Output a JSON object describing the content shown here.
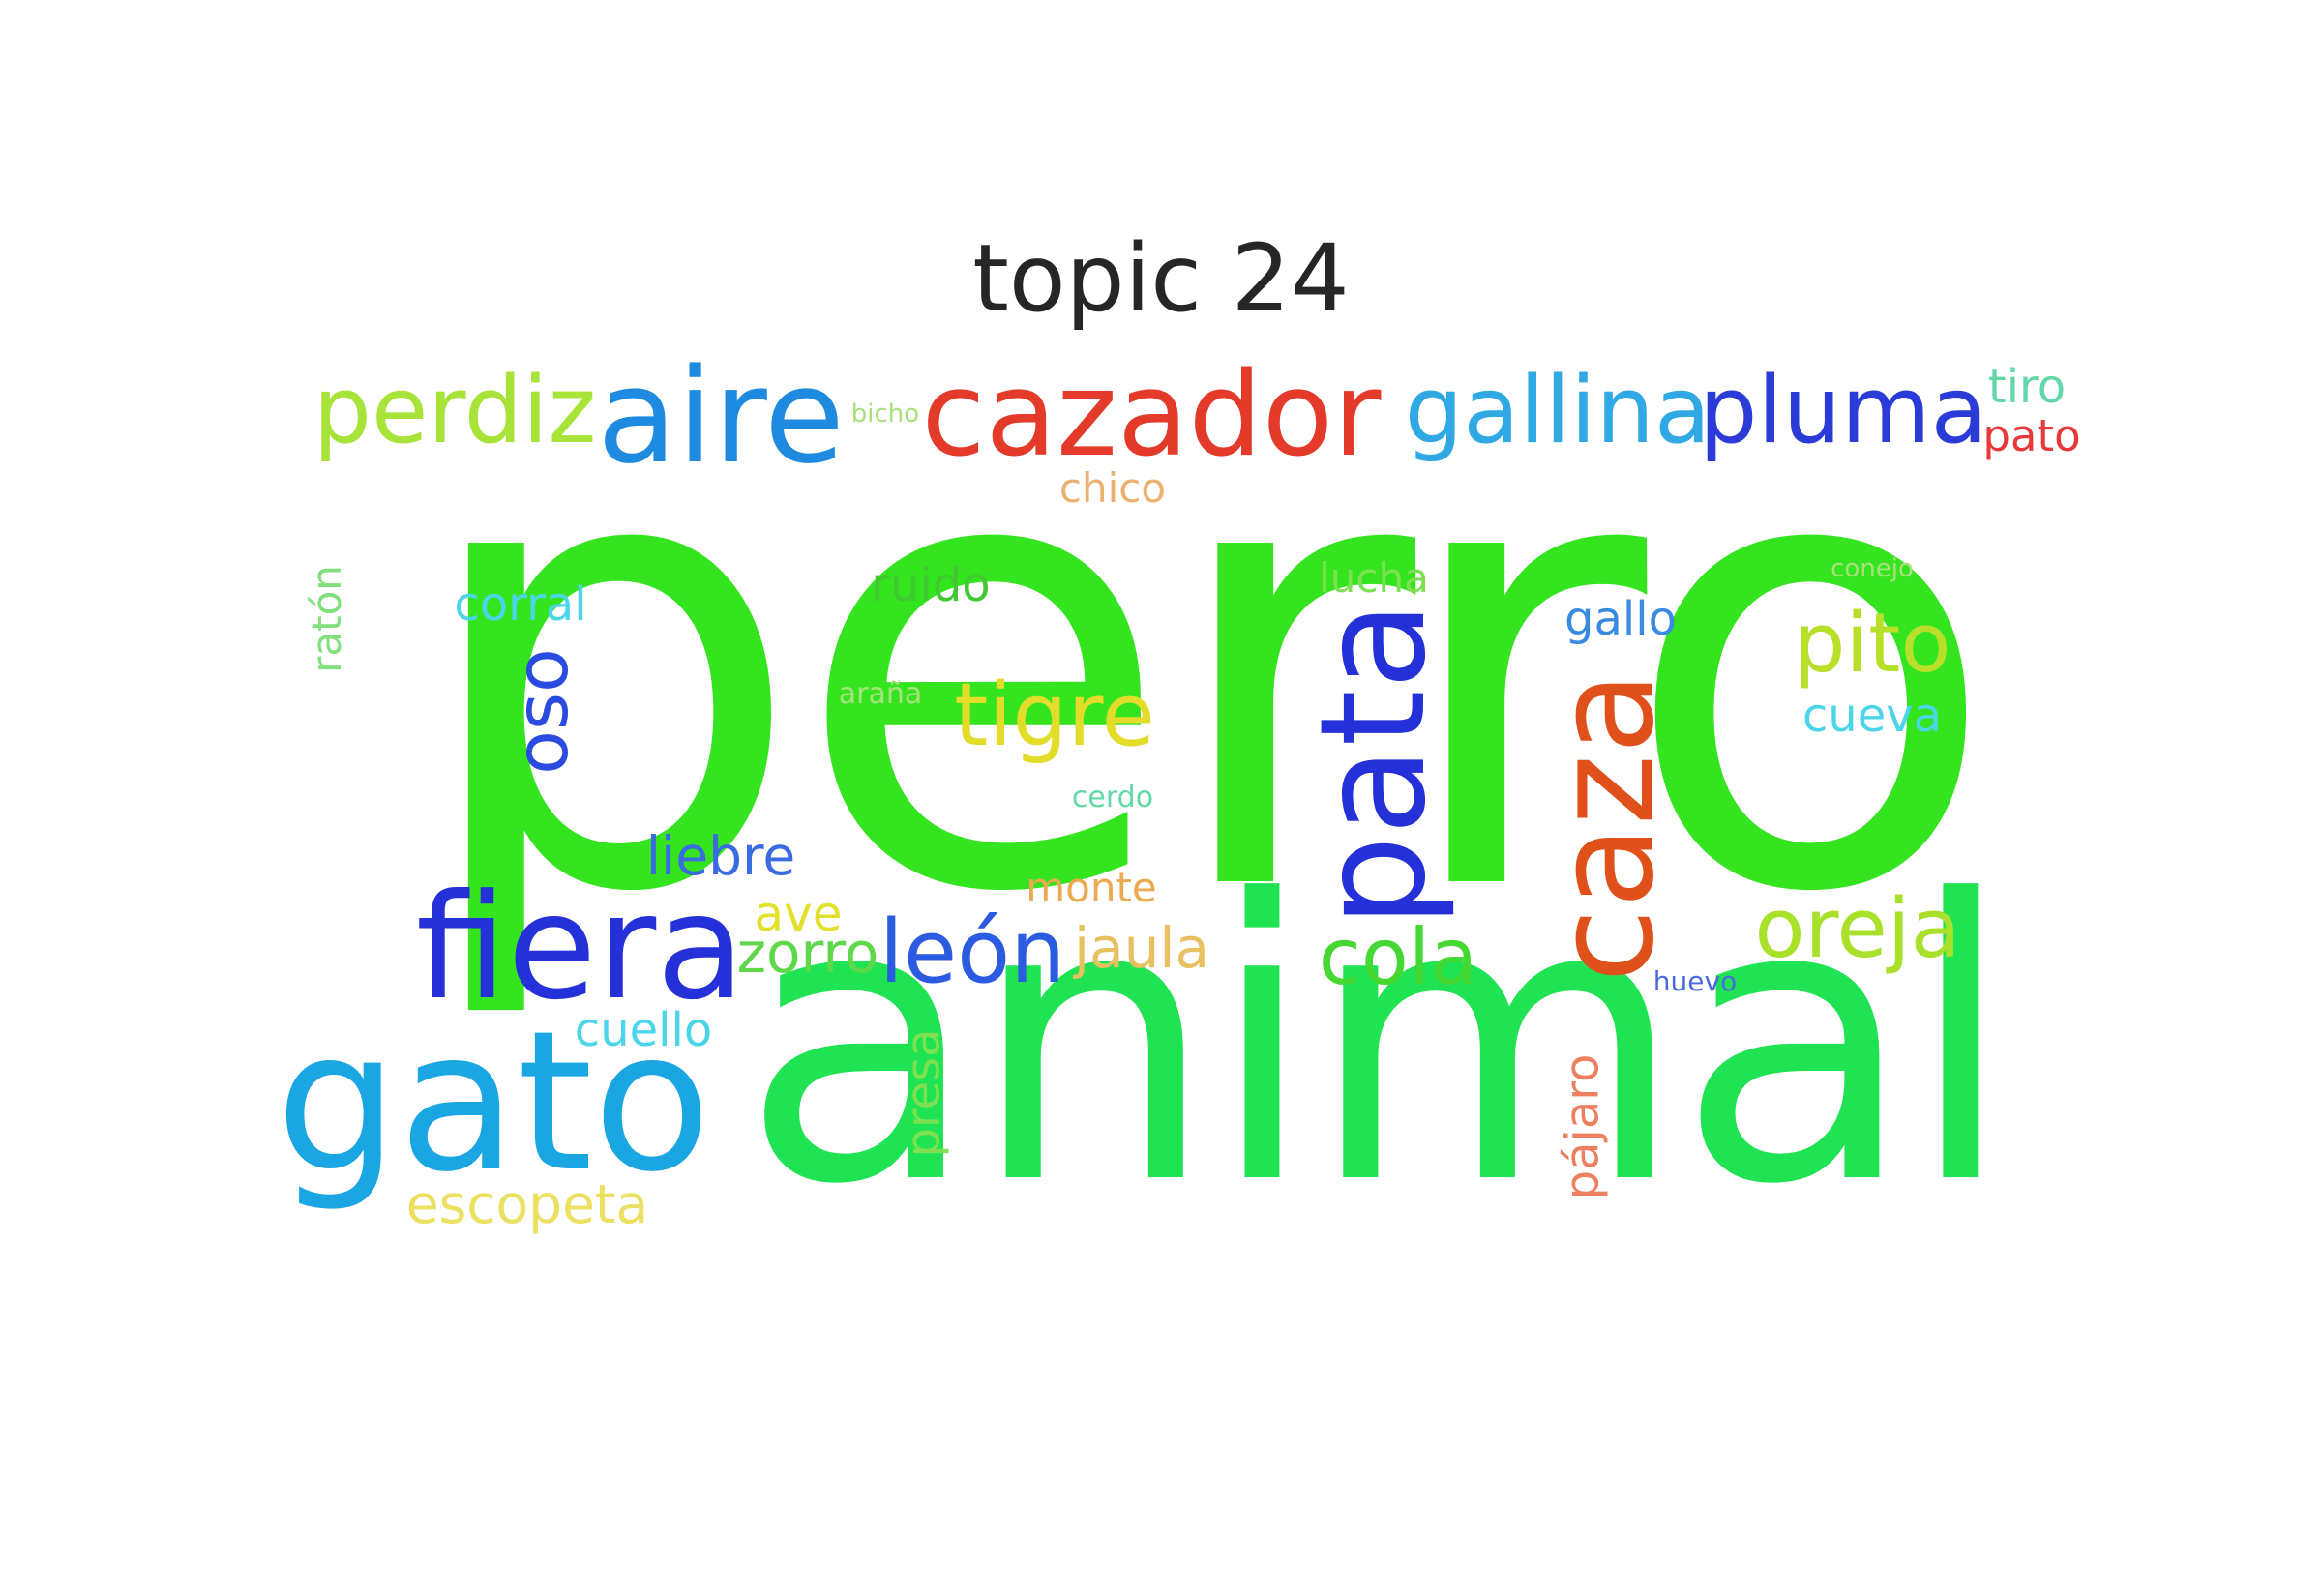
{
  "title": "topic 24",
  "colors": {
    "background": "#ffffff",
    "title": "#262626"
  },
  "words": [
    {
      "text": "perro",
      "color": "#33e41f"
    },
    {
      "text": "animal",
      "color": "#1fe352"
    },
    {
      "text": "gato",
      "color": "#1aa6e3"
    },
    {
      "text": "fiera",
      "color": "#2431d8"
    },
    {
      "text": "pata",
      "color": "#2431d8"
    },
    {
      "text": "caza",
      "color": "#e0501a"
    },
    {
      "text": "aire",
      "color": "#1f8be0"
    },
    {
      "text": "cazador",
      "color": "#e33a2a"
    },
    {
      "text": "gallina",
      "color": "#2fa8e3"
    },
    {
      "text": "pluma",
      "color": "#2a3bd8"
    },
    {
      "text": "perdiz",
      "color": "#a8e33a"
    },
    {
      "text": "tigre",
      "color": "#e3dd2a"
    },
    {
      "text": "león",
      "color": "#2a5be0"
    },
    {
      "text": "oreja",
      "color": "#a8e02a"
    },
    {
      "text": "pito",
      "color": "#b8e02a"
    },
    {
      "text": "cola",
      "color": "#45d832"
    },
    {
      "text": "oso",
      "color": "#2a4be0"
    },
    {
      "text": "zorro",
      "color": "#5ed84a"
    },
    {
      "text": "jaula",
      "color": "#e8c060"
    },
    {
      "text": "liebre",
      "color": "#3a6be0"
    },
    {
      "text": "escopeta",
      "color": "#ece060"
    },
    {
      "text": "cuello",
      "color": "#4ad6e8"
    },
    {
      "text": "corral",
      "color": "#4ad6e8"
    },
    {
      "text": "cueva",
      "color": "#4ad6e8"
    },
    {
      "text": "gallo",
      "color": "#3a8be0"
    },
    {
      "text": "ruido",
      "color": "#42c832"
    },
    {
      "text": "tiro",
      "color": "#62d8a8"
    },
    {
      "text": "pato",
      "color": "#e8383a"
    },
    {
      "text": "chico",
      "color": "#ecb070"
    },
    {
      "text": "lucha",
      "color": "#7ce050"
    },
    {
      "text": "ave",
      "color": "#e3e02a"
    },
    {
      "text": "monte",
      "color": "#ecaa50"
    },
    {
      "text": "presa",
      "color": "#7ce050"
    },
    {
      "text": "pájaro",
      "color": "#ec8060"
    },
    {
      "text": "ratón",
      "color": "#82e07c"
    },
    {
      "text": "araña",
      "color": "#a8e07c"
    },
    {
      "text": "cerdo",
      "color": "#62d8a8"
    },
    {
      "text": "conejo",
      "color": "#a8e07c"
    },
    {
      "text": "bicho",
      "color": "#a8e07c"
    },
    {
      "text": "huevo",
      "color": "#4a6be0"
    }
  ]
}
